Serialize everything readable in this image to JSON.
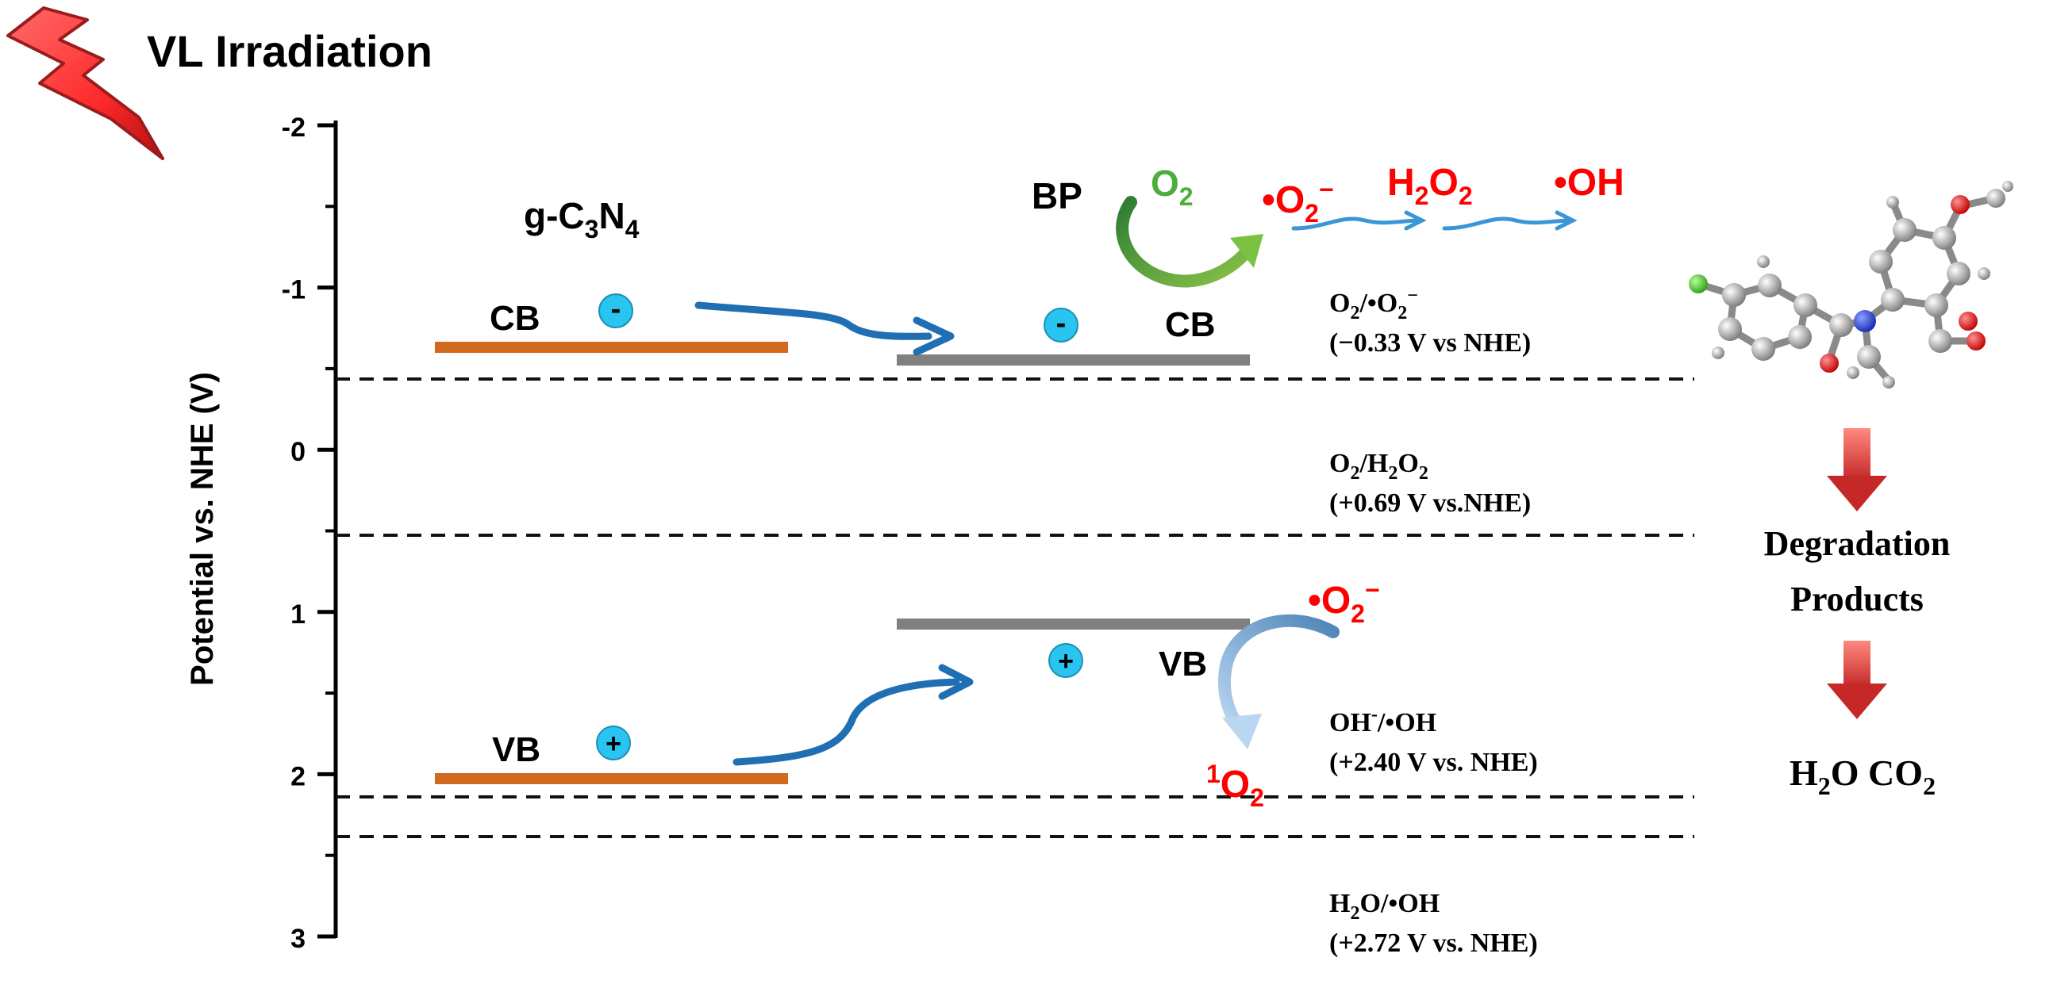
{
  "header": {
    "title": "VL Irradiation",
    "icon": "lightning-bolt-icon"
  },
  "axis": {
    "label": "Potential vs. NHE (V)",
    "ticks": [
      "-2",
      "-1",
      "0",
      "1",
      "2",
      "3"
    ]
  },
  "materials": {
    "gcn": {
      "prefix": "g-C",
      "sub1": "3",
      "mid": "N",
      "sub2": "4"
    },
    "bp": {
      "label": "BP"
    }
  },
  "bands": {
    "gcn_cb": "CB",
    "gcn_vb": "VB",
    "bp_cb": "CB",
    "bp_vb": "VB"
  },
  "carriers": {
    "electron": "-",
    "hole": "+"
  },
  "reactions": {
    "o2": {
      "base": "O",
      "sub": "2"
    },
    "superoxide": {
      "dot": "•",
      "base": "O",
      "sub": "2",
      "sup": "−"
    },
    "h2o2": {
      "a": "H",
      "s1": "2",
      "b": "O",
      "s2": "2"
    },
    "oh_radical": "•OH",
    "singlet_o2": {
      "sup": "1",
      "base": "O",
      "sub": "2"
    }
  },
  "potentials": [
    {
      "couple_a": "O",
      "couple_s1": "2",
      "couple_b": "/•O",
      "couple_s2": "2",
      "couple_sup": "−",
      "value": "(−0.33 V vs NHE)"
    },
    {
      "couple_a": "O",
      "couple_s1": "2",
      "couple_b": "/H",
      "couple_s2": "2",
      "couple_c": "O",
      "couple_s3": "2",
      "value": "(+0.69 V vs.NHE)"
    },
    {
      "couple_a": "OH",
      "couple_sup": "-",
      "couple_b": "/•OH",
      "value": "(+2.40 V vs. NHE)"
    },
    {
      "couple_a": "H",
      "couple_s1": "2",
      "couple_b": "O/•OH",
      "value": "(+2.72 V vs. NHE)"
    }
  ],
  "pathway": {
    "products_line1": "Degradation",
    "products_line2": "Products",
    "final_a": "H",
    "final_s1": "2",
    "final_b": "O CO",
    "final_s2": "2"
  },
  "colors": {
    "gcn_band": "#d2691e",
    "bp_band": "#808080",
    "arrow_blue": "#1f6fb2",
    "carrier": "#29c4f0",
    "radical_red": "#ff0000",
    "o2_green": "#4caf3c",
    "dashed": "#111111",
    "down_arrow": "#e8403a"
  }
}
